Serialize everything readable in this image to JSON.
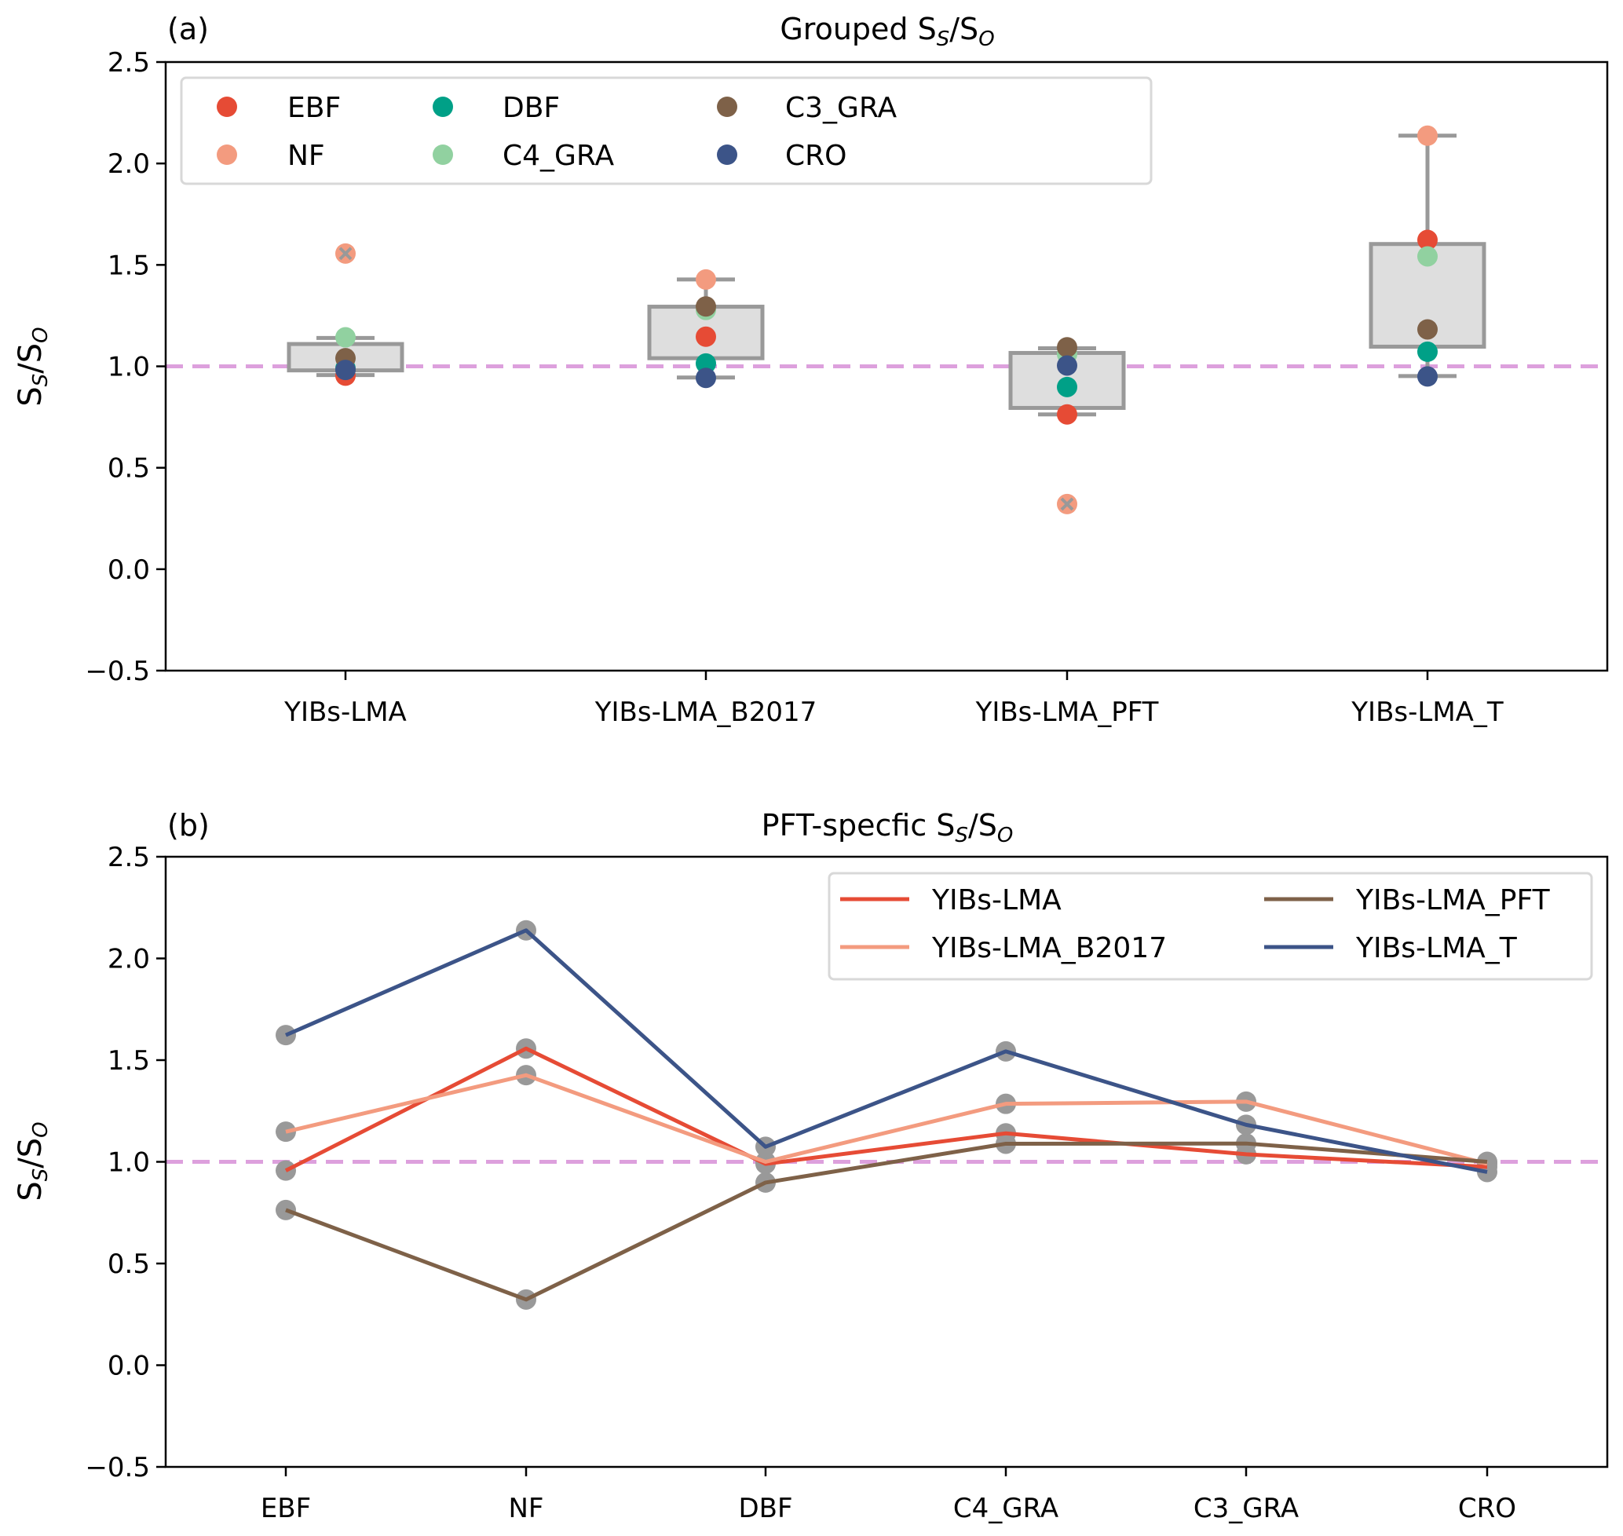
{
  "chart_data": [
    {
      "type": "box",
      "panel_tag": "(a)",
      "title": "Grouped S_S/S_O",
      "title_main": "Grouped S",
      "title_sub1": "S",
      "title_mid": "/S",
      "title_sub2": "O",
      "ylabel": "S_S/S_O",
      "xlabel": "",
      "ylim": [
        -0.5,
        2.5
      ],
      "yticks": [
        "2.5",
        "2.0",
        "1.5",
        "1.0",
        "0.5",
        "0.0",
        "−0.5"
      ],
      "ytick_values": [
        2.5,
        2.0,
        1.5,
        1.0,
        0.5,
        0.0,
        -0.5
      ],
      "reference_line": 1.0,
      "reference_color": "#dda0dd",
      "categories": [
        "YIBs-LMA",
        "YIBs-LMA_B2017",
        "YIBs-LMA_PFT",
        "YIBs-LMA_T"
      ],
      "boxes": [
        {
          "q1": 0.98,
          "q3": 1.11,
          "whisker_low": 0.957,
          "whisker_high": 1.14,
          "outliers": [
            1.556
          ]
        },
        {
          "q1": 1.04,
          "q3": 1.294,
          "whisker_low": 0.945,
          "whisker_high": 1.428,
          "outliers": []
        },
        {
          "q1": 0.795,
          "q3": 1.066,
          "whisker_low": 0.763,
          "whisker_high": 1.089,
          "outliers": [
            0.321
          ]
        },
        {
          "q1": 1.097,
          "q3": 1.603,
          "whisker_low": 0.952,
          "whisker_high": 2.137,
          "outliers": []
        }
      ],
      "legend": {
        "placement": "top-left",
        "entries": [
          {
            "label": "EBF",
            "color": "#e64b35"
          },
          {
            "label": "NF",
            "color": "#f39b7f"
          },
          {
            "label": "DBF",
            "color": "#00a087"
          },
          {
            "label": "C4_GRA",
            "color": "#91d1a0"
          },
          {
            "label": "C3_GRA",
            "color": "#7e6148"
          },
          {
            "label": "CRO",
            "color": "#3c5488"
          }
        ]
      },
      "points": {
        "EBF": [
          0.954,
          1.146,
          0.763,
          1.623
        ],
        "NF": [
          1.556,
          1.428,
          0.321,
          2.137
        ],
        "DBF": [
          0.99,
          1.014,
          0.898,
          1.072
        ],
        "C4_GRA": [
          1.143,
          1.278,
          1.06,
          1.542
        ],
        "C3_GRA": [
          1.04,
          1.295,
          1.094,
          1.182
        ],
        "CRO": [
          0.982,
          0.943,
          1.004,
          0.95
        ]
      }
    },
    {
      "type": "line",
      "panel_tag": "(b)",
      "title": "PFT-specfic S_S/S_O",
      "title_main": "PFT-specfic S",
      "title_sub1": "S",
      "title_mid": "/S",
      "title_sub2": "O",
      "ylabel": "S_S/S_O",
      "xlabel": "",
      "ylim": [
        -0.5,
        2.5
      ],
      "yticks": [
        "2.5",
        "2.0",
        "1.5",
        "1.0",
        "0.5",
        "0.0",
        "−0.5"
      ],
      "ytick_values": [
        2.5,
        2.0,
        1.5,
        1.0,
        0.5,
        0.0,
        -0.5
      ],
      "reference_line": 1.0,
      "categories": [
        "EBF",
        "NF",
        "DBF",
        "C4_GRA",
        "C3_GRA",
        "CRO"
      ],
      "marker_color": "#999999",
      "legend": {
        "placement": "top-right"
      },
      "series": [
        {
          "name": "YIBs-LMA",
          "color": "#e64b35",
          "values": [
            0.957,
            1.557,
            0.99,
            1.14,
            1.037,
            0.975
          ]
        },
        {
          "name": "YIBs-LMA_B2017",
          "color": "#f39b7f",
          "values": [
            1.148,
            1.426,
            1.0,
            1.285,
            1.296,
            0.99
          ]
        },
        {
          "name": "YIBs-LMA_PFT",
          "color": "#7e6148",
          "values": [
            0.763,
            0.323,
            0.898,
            1.089,
            1.09,
            1.0
          ]
        },
        {
          "name": "YIBs-LMA_T",
          "color": "#3c5488",
          "values": [
            1.623,
            2.138,
            1.074,
            1.543,
            1.182,
            0.95
          ]
        }
      ]
    }
  ]
}
